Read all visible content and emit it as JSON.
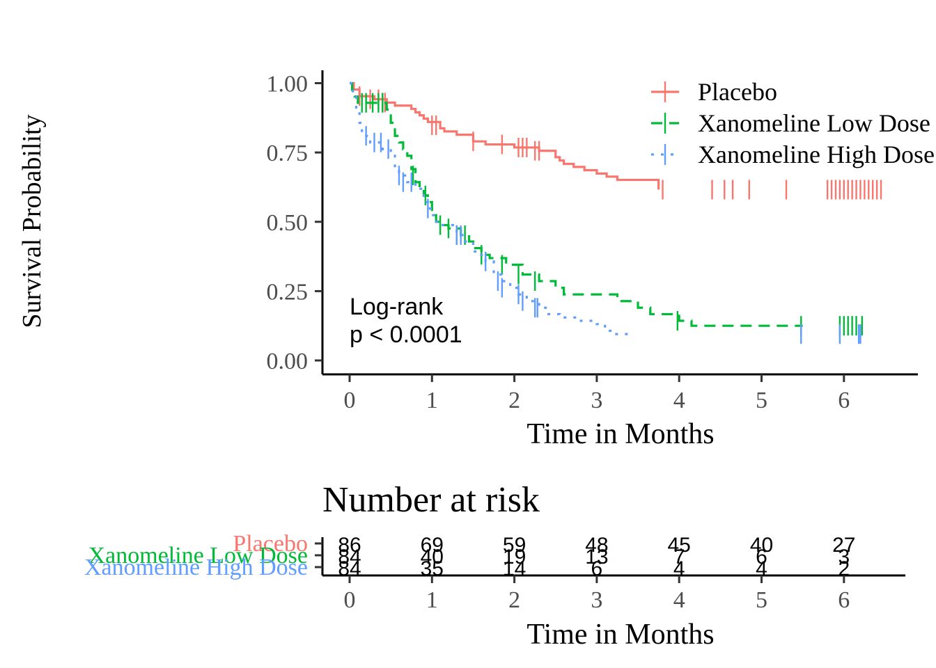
{
  "chart_data": [
    {
      "type": "line",
      "subtype": "kaplan-meier",
      "ylabel": "Survival Probability",
      "xlabel": "Time in Months",
      "xlim": [
        0,
        6.5
      ],
      "ylim": [
        0,
        1
      ],
      "xticks": [
        "0",
        "1",
        "2",
        "3",
        "4",
        "5",
        "6"
      ],
      "yticks": [
        "0.00",
        "0.25",
        "0.50",
        "0.75",
        "1.00"
      ],
      "grid": false,
      "legend_position": "top-right",
      "annotation": {
        "line1": "Log-rank",
        "line2": "p < 0.0001"
      },
      "series": [
        {
          "name": "Placebo",
          "color": "#F8766D",
          "dash": "solid",
          "steps": [
            [
              0,
              1.0
            ],
            [
              0.05,
              0.977
            ],
            [
              0.12,
              0.953
            ],
            [
              0.3,
              0.942
            ],
            [
              0.45,
              0.93
            ],
            [
              0.55,
              0.919
            ],
            [
              0.75,
              0.907
            ],
            [
              0.8,
              0.895
            ],
            [
              0.85,
              0.884
            ],
            [
              0.9,
              0.872
            ],
            [
              0.95,
              0.86
            ],
            [
              1.1,
              0.837
            ],
            [
              1.15,
              0.826
            ],
            [
              1.3,
              0.814
            ],
            [
              1.5,
              0.79
            ],
            [
              1.65,
              0.779
            ],
            [
              2.0,
              0.768
            ],
            [
              2.3,
              0.756
            ],
            [
              2.5,
              0.733
            ],
            [
              2.55,
              0.721
            ],
            [
              2.6,
              0.709
            ],
            [
              2.72,
              0.698
            ],
            [
              2.85,
              0.686
            ],
            [
              3.0,
              0.674
            ],
            [
              3.12,
              0.663
            ],
            [
              3.25,
              0.651
            ],
            [
              3.75,
              0.616
            ]
          ],
          "censors": [
            [
              0.12,
              0.953
            ],
            [
              0.25,
              0.942
            ],
            [
              0.35,
              0.942
            ],
            [
              0.4,
              0.93
            ],
            [
              0.43,
              0.93
            ],
            [
              1.0,
              0.848
            ],
            [
              1.05,
              0.848
            ],
            [
              1.5,
              0.79
            ],
            [
              1.85,
              0.779
            ],
            [
              2.05,
              0.768
            ],
            [
              2.1,
              0.768
            ],
            [
              2.15,
              0.768
            ],
            [
              2.25,
              0.756
            ],
            [
              2.3,
              0.756
            ],
            [
              3.8,
              0.616
            ],
            [
              4.4,
              0.616
            ],
            [
              4.55,
              0.616
            ],
            [
              4.65,
              0.616
            ],
            [
              4.85,
              0.616
            ],
            [
              5.3,
              0.616
            ],
            [
              5.8,
              0.616
            ],
            [
              5.85,
              0.616
            ],
            [
              5.9,
              0.616
            ],
            [
              5.95,
              0.616
            ],
            [
              6.0,
              0.616
            ],
            [
              6.05,
              0.616
            ],
            [
              6.1,
              0.616
            ],
            [
              6.15,
              0.616
            ],
            [
              6.2,
              0.616
            ],
            [
              6.25,
              0.616
            ],
            [
              6.3,
              0.616
            ],
            [
              6.35,
              0.616
            ],
            [
              6.4,
              0.616
            ],
            [
              6.45,
              0.616
            ]
          ],
          "risk": [
            86,
            69,
            59,
            48,
            45,
            40,
            27
          ]
        },
        {
          "name": "Xanomeline Low Dose",
          "color": "#00BA38",
          "dash": "long",
          "steps": [
            [
              0,
              1.0
            ],
            [
              0.03,
              0.976
            ],
            [
              0.06,
              0.952
            ],
            [
              0.1,
              0.929
            ],
            [
              0.45,
              0.905
            ],
            [
              0.5,
              0.857
            ],
            [
              0.55,
              0.81
            ],
            [
              0.6,
              0.786
            ],
            [
              0.65,
              0.762
            ],
            [
              0.7,
              0.738
            ],
            [
              0.75,
              0.69
            ],
            [
              0.8,
              0.643
            ],
            [
              0.85,
              0.619
            ],
            [
              0.9,
              0.595
            ],
            [
              0.95,
              0.571
            ],
            [
              1.0,
              0.524
            ],
            [
              1.05,
              0.5
            ],
            [
              1.1,
              0.488
            ],
            [
              1.2,
              0.476
            ],
            [
              1.35,
              0.452
            ],
            [
              1.45,
              0.429
            ],
            [
              1.5,
              0.405
            ],
            [
              1.6,
              0.381
            ],
            [
              1.7,
              0.369
            ],
            [
              1.9,
              0.345
            ],
            [
              2.1,
              0.31
            ],
            [
              2.3,
              0.286
            ],
            [
              2.5,
              0.262
            ],
            [
              2.6,
              0.238
            ],
            [
              3.25,
              0.214
            ],
            [
              3.5,
              0.19
            ],
            [
              3.65,
              0.167
            ],
            [
              4.0,
              0.143
            ],
            [
              4.15,
              0.125
            ],
            [
              5.5,
              0.125
            ]
          ],
          "censors": [
            [
              0.15,
              0.929
            ],
            [
              0.2,
              0.929
            ],
            [
              0.28,
              0.929
            ],
            [
              0.35,
              0.929
            ],
            [
              0.4,
              0.929
            ],
            [
              0.77,
              0.667
            ],
            [
              0.92,
              0.595
            ],
            [
              1.1,
              0.488
            ],
            [
              1.2,
              0.476
            ],
            [
              1.3,
              0.452
            ],
            [
              1.4,
              0.452
            ],
            [
              1.6,
              0.381
            ],
            [
              1.85,
              0.345
            ],
            [
              2.05,
              0.31
            ],
            [
              2.25,
              0.286
            ],
            [
              3.98,
              0.143
            ],
            [
              5.48,
              0.125
            ],
            [
              5.95,
              0.125
            ],
            [
              6.0,
              0.125
            ],
            [
              6.05,
              0.125
            ],
            [
              6.1,
              0.125
            ],
            [
              6.15,
              0.125
            ],
            [
              6.22,
              0.125
            ]
          ],
          "risk": [
            84,
            40,
            19,
            13,
            7,
            6,
            3
          ]
        },
        {
          "name": "Xanomeline High Dose",
          "color": "#619CFF",
          "dash": "dotted",
          "steps": [
            [
              0,
              1.0
            ],
            [
              0.04,
              0.952
            ],
            [
              0.08,
              0.905
            ],
            [
              0.12,
              0.857
            ],
            [
              0.15,
              0.81
            ],
            [
              0.25,
              0.786
            ],
            [
              0.4,
              0.762
            ],
            [
              0.5,
              0.738
            ],
            [
              0.55,
              0.69
            ],
            [
              0.6,
              0.667
            ],
            [
              0.7,
              0.643
            ],
            [
              0.8,
              0.619
            ],
            [
              0.9,
              0.571
            ],
            [
              0.95,
              0.548
            ],
            [
              1.0,
              0.524
            ],
            [
              1.05,
              0.5
            ],
            [
              1.1,
              0.488
            ],
            [
              1.3,
              0.452
            ],
            [
              1.4,
              0.429
            ],
            [
              1.5,
              0.393
            ],
            [
              1.55,
              0.381
            ],
            [
              1.65,
              0.357
            ],
            [
              1.75,
              0.31
            ],
            [
              1.85,
              0.286
            ],
            [
              1.95,
              0.262
            ],
            [
              2.05,
              0.238
            ],
            [
              2.15,
              0.214
            ],
            [
              2.3,
              0.19
            ],
            [
              2.4,
              0.167
            ],
            [
              2.55,
              0.155
            ],
            [
              2.75,
              0.143
            ],
            [
              3.0,
              0.131
            ],
            [
              3.1,
              0.107
            ],
            [
              3.2,
              0.095
            ],
            [
              3.4,
              0.095
            ]
          ],
          "censors": [
            [
              0.2,
              0.81
            ],
            [
              0.3,
              0.786
            ],
            [
              0.38,
              0.786
            ],
            [
              0.47,
              0.762
            ],
            [
              0.6,
              0.667
            ],
            [
              0.65,
              0.643
            ],
            [
              0.75,
              0.643
            ],
            [
              0.95,
              0.548
            ],
            [
              1.3,
              0.452
            ],
            [
              1.35,
              0.452
            ],
            [
              1.65,
              0.357
            ],
            [
              1.8,
              0.286
            ],
            [
              1.85,
              0.262
            ],
            [
              2.05,
              0.238
            ],
            [
              2.1,
              0.214
            ],
            [
              2.25,
              0.19
            ],
            [
              2.28,
              0.19
            ],
            [
              5.48,
              0.095
            ],
            [
              5.95,
              0.095
            ],
            [
              6.18,
              0.095
            ],
            [
              6.2,
              0.095
            ]
          ],
          "risk": [
            84,
            35,
            14,
            6,
            4,
            4,
            2
          ]
        }
      ]
    },
    {
      "type": "table",
      "title": "Number at risk",
      "xlabel": "Time in Months",
      "xlim": [
        0,
        6.5
      ],
      "xticks": [
        "0",
        "1",
        "2",
        "3",
        "4",
        "5",
        "6"
      ],
      "rows": [
        "Placebo",
        "Xanomeline Low Dose",
        "Xanomeline High Dose"
      ]
    }
  ]
}
